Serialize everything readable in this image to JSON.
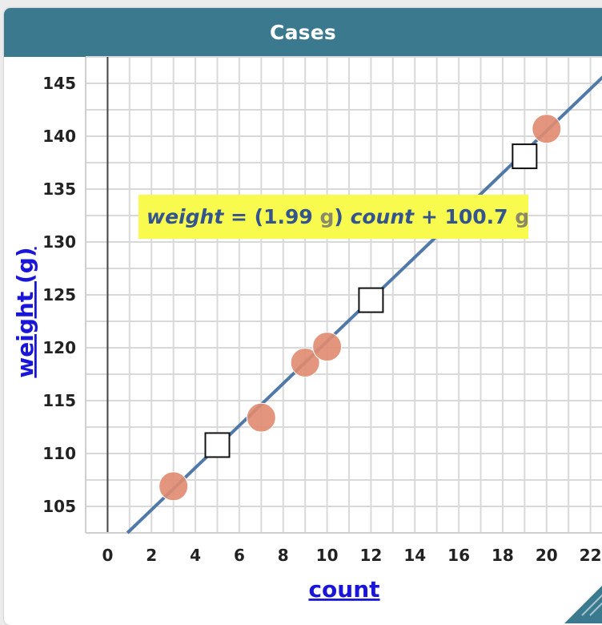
{
  "window": {
    "title": "Cases"
  },
  "equation": {
    "y_var": "weight",
    "equals": "=",
    "open_paren": "(",
    "slope": "1.99",
    "slope_unit": "g",
    "close_paren": ")",
    "x_var": "count",
    "plus": "+",
    "intercept": "100.7",
    "intercept_unit": "g"
  },
  "colors": {
    "title_bar": "#3b798f",
    "point_fill": "#e08b6f",
    "line": "#5078a8",
    "equation_bg": "#f8fb4d",
    "axis_label": "#1a16d9"
  },
  "chart_data": {
    "type": "scatter",
    "title": "Cases",
    "xlabel": "count",
    "ylabel": "weight (g)",
    "xlim": [
      -1,
      23
    ],
    "ylim": [
      102.5,
      147.5
    ],
    "x_ticks": [
      0,
      2,
      4,
      6,
      8,
      10,
      12,
      14,
      16,
      18,
      20,
      22
    ],
    "y_ticks": [
      105,
      110,
      115,
      120,
      125,
      130,
      135,
      140,
      145
    ],
    "grid": true,
    "points": [
      {
        "x": 3,
        "y": 106.9
      },
      {
        "x": 7,
        "y": 113.4
      },
      {
        "x": 9,
        "y": 118.6
      },
      {
        "x": 10,
        "y": 120.1
      },
      {
        "x": 20,
        "y": 140.7
      }
    ],
    "movable_points": [
      {
        "x": 5,
        "y": 110.8
      },
      {
        "x": 12,
        "y": 124.5
      },
      {
        "x": 19,
        "y": 138.1
      }
    ],
    "least_squares_line": {
      "slope": 1.99,
      "intercept": 100.7
    }
  }
}
